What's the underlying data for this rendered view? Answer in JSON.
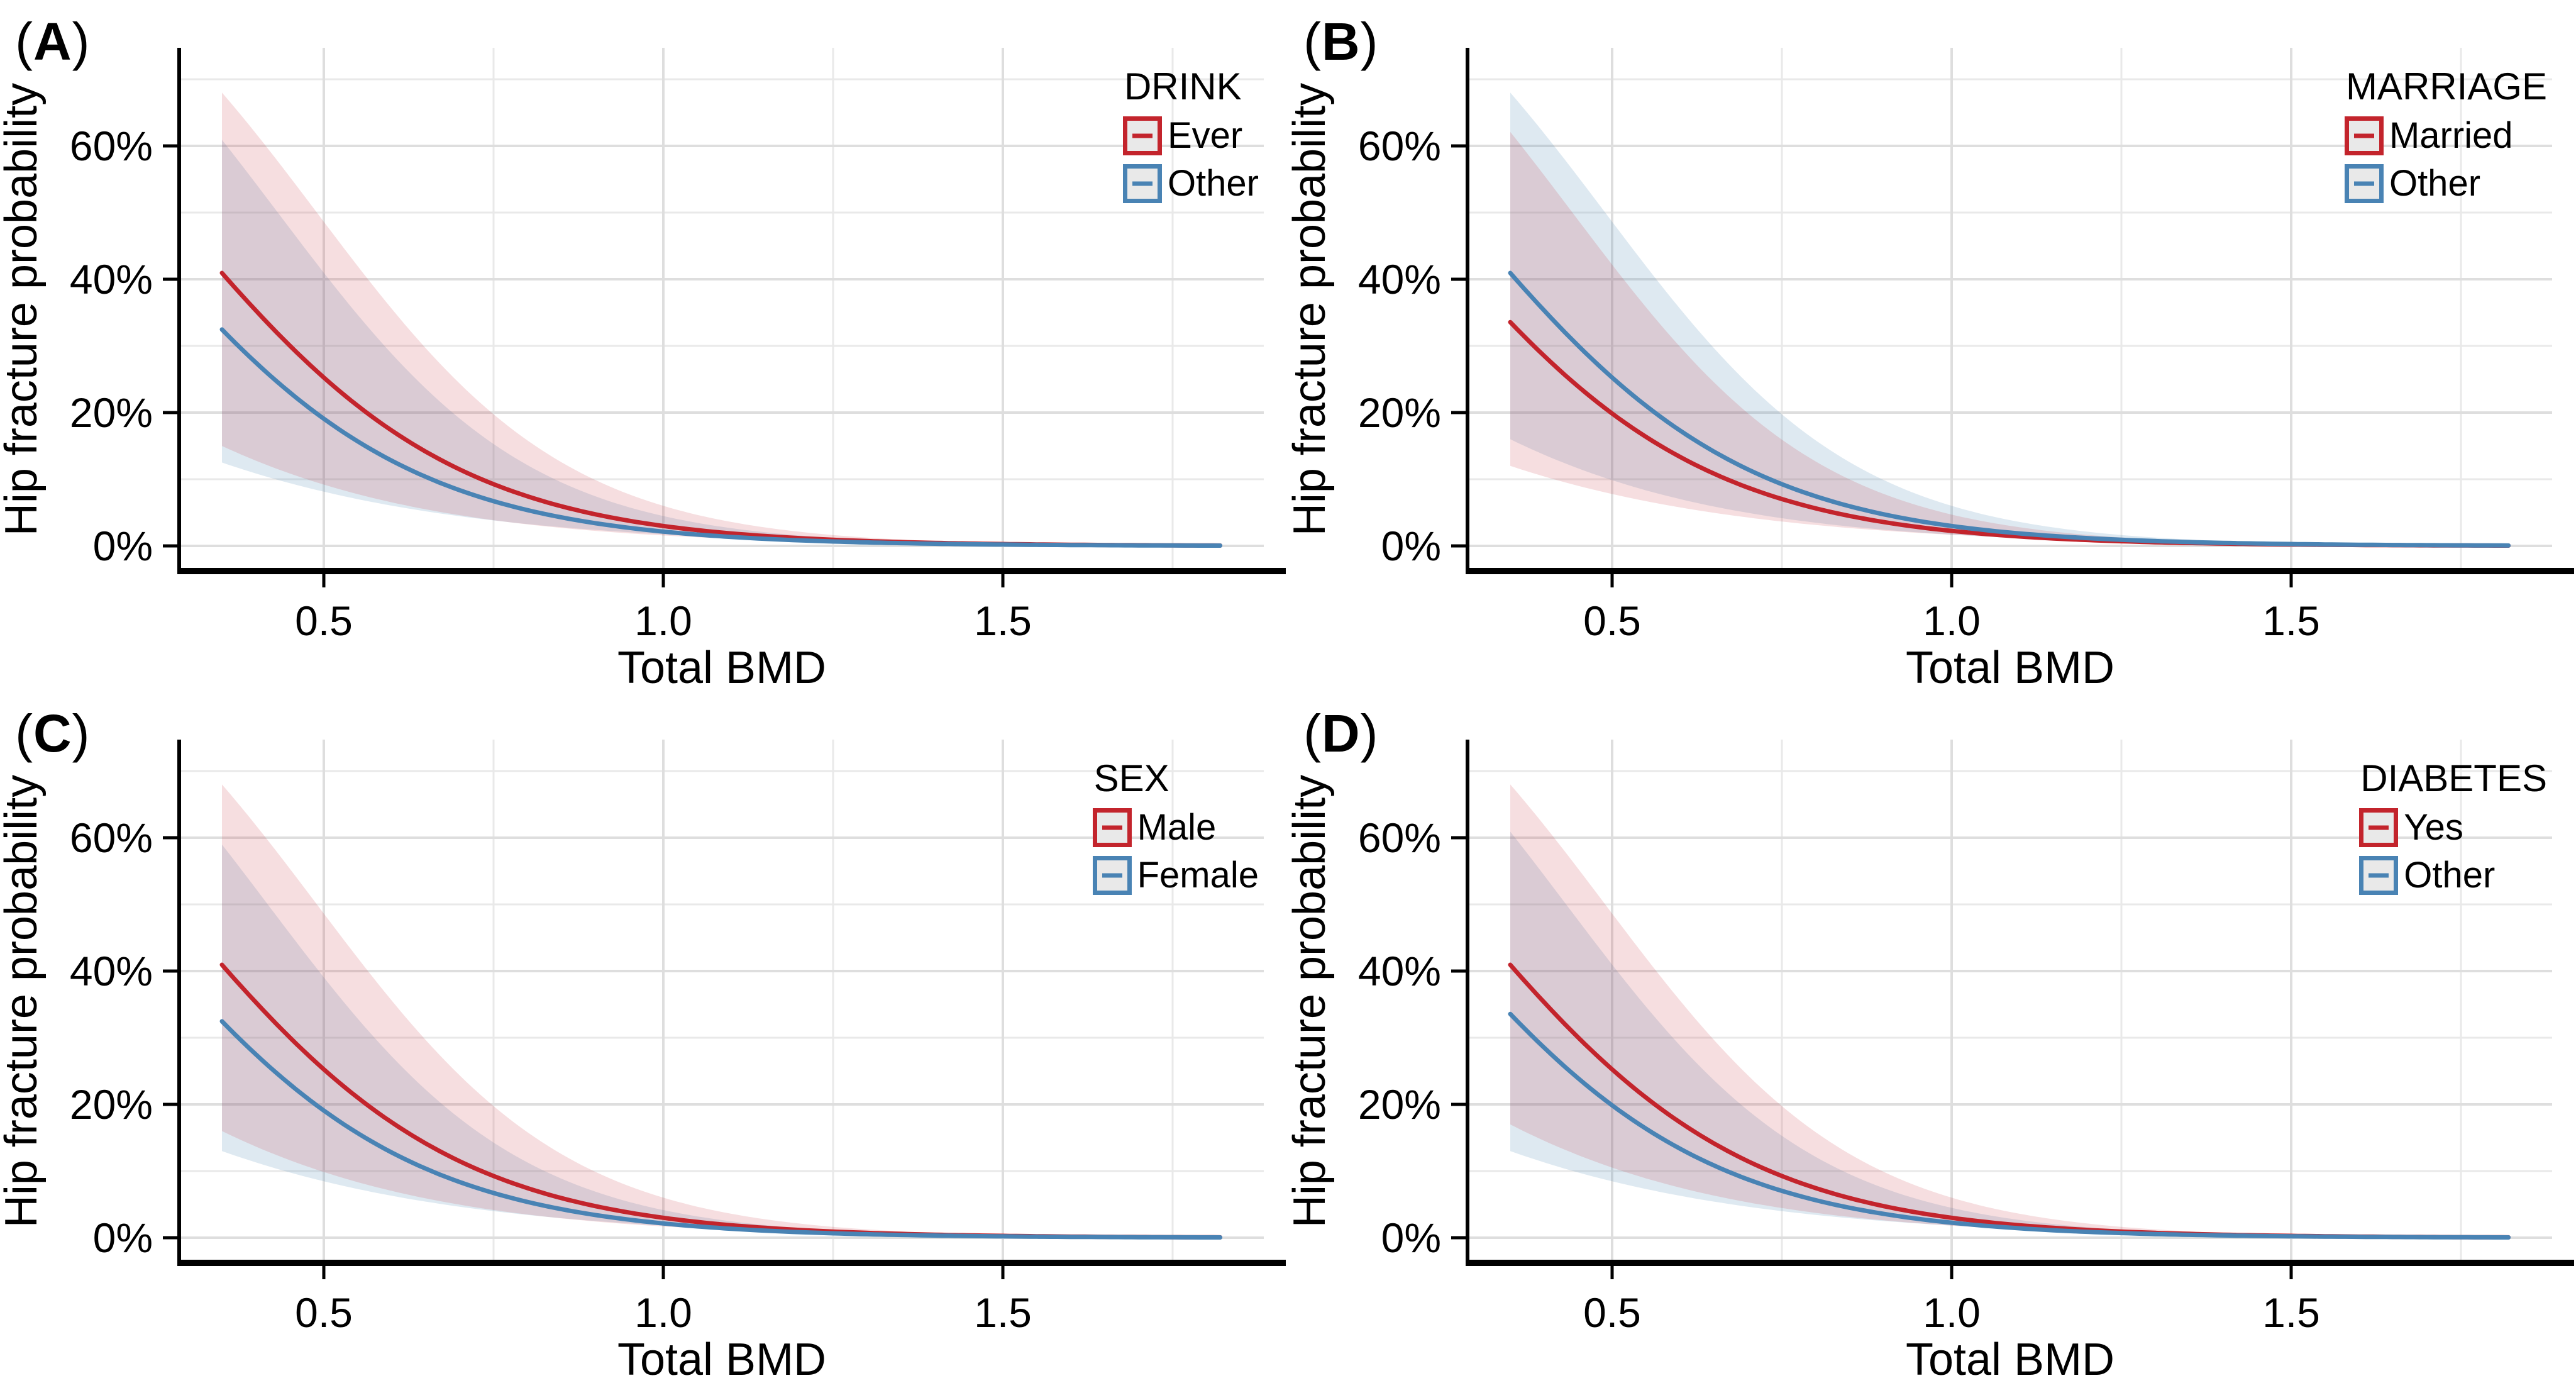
{
  "figure": {
    "background": "#FFFFFF",
    "paren_open": "(",
    "paren_close": ")",
    "layout": "2x2-grid-of-panels"
  },
  "colors": {
    "red_line": "#C3242C",
    "blue_line": "#4983B4",
    "red_ribbon_fill": "#F7DFE2",
    "blue_ribbon_fill": "#DCE8F2",
    "ribbon_overlap": "#DFD3DC",
    "grid_major": "#DEDEDE",
    "grid_minor": "#E9E9E9",
    "axis": "#000000",
    "text": "#000000",
    "legend_key_fill": "#E9E9E9"
  },
  "axes": {
    "x_label": "Total BMD",
    "y_label": "Hip fracture probability",
    "x_ticks": [
      "0.5",
      "1.0",
      "1.5"
    ],
    "x_tick_values": [
      0.5,
      1.0,
      1.5
    ],
    "x_minor_values": [
      0.75,
      1.25,
      1.75
    ],
    "y_ticks": [
      "0%",
      "20%",
      "40%",
      "60%"
    ],
    "y_tick_values": [
      0,
      20,
      40,
      60
    ],
    "y_minor_pct": [
      10,
      30,
      50,
      70
    ],
    "x_range_displayed": [
      0.287,
      1.884
    ],
    "y_range_displayed_pct": [
      -3.8,
      74.7
    ],
    "grid": true,
    "axis_style": "left-and-bottom-black-spines"
  },
  "chart_data": [
    {
      "type": "line",
      "ci": "ribbon",
      "panel_label": "A",
      "legend_title": "DRINK",
      "legend_position": "top-right-inside",
      "x_label": "Total BMD",
      "y_label": "Hip fracture probability",
      "x_domain": [
        0.35,
        1.82
      ],
      "series": [
        {
          "name": "Ever",
          "color_key": "red",
          "line_logit": {
            "a": 1.31,
            "b": -4.79
          },
          "upper_logit": {
            "a": 2.64,
            "b": -5.39
          },
          "lower_logit": {
            "a": -0.44,
            "b": -3.7
          },
          "readings_pct": {
            "x": [
              0.35,
              0.5,
              0.75,
              1.0,
              1.25,
              1.5,
              1.82
            ],
            "line": [
              41,
              25,
              9.2,
              3.0,
              0.9,
              0.3,
              0.1
            ],
            "upper": [
              68,
              49,
              20,
              6.0,
              1.6,
              0.4,
              0.1
            ],
            "lower": [
              15,
              9.2,
              3.9,
              1.6,
              0.6,
              0.25,
              0.1
            ]
          }
        },
        {
          "name": "Other",
          "color_key": "blue",
          "line_logit": {
            "a": 0.93,
            "b": -4.75
          },
          "upper_logit": {
            "a": 2.33,
            "b": -5.39
          },
          "lower_logit": {
            "a": -0.825,
            "b": -3.2
          },
          "readings_pct": {
            "x": [
              0.35,
              0.5,
              0.75,
              1.0,
              1.25,
              1.5,
              1.82
            ],
            "line": [
              32,
              19,
              6.7,
              2.1,
              0.7,
              0.2,
              0.1
            ],
            "upper": [
              61,
              41,
              15,
              4.5,
              1.2,
              0.3,
              0.1
            ],
            "lower": [
              12.5,
              8.1,
              3.8,
              1.8,
              0.8,
              0.4,
              0.13
            ]
          }
        }
      ]
    },
    {
      "type": "line",
      "ci": "ribbon",
      "panel_label": "B",
      "legend_title": "MARRIAGE",
      "legend_position": "top-right-inside",
      "x_label": "Total BMD",
      "y_label": "Hip fracture probability",
      "x_domain": [
        0.35,
        1.82
      ],
      "series": [
        {
          "name": "Married",
          "color_key": "red",
          "line_logit": {
            "a": 0.98,
            "b": -4.75
          },
          "upper_logit": {
            "a": 2.38,
            "b": -5.39
          },
          "lower_logit": {
            "a": -0.872,
            "b": -3.2
          },
          "readings_pct": {
            "x": [
              0.35,
              0.5,
              0.75,
              1.0,
              1.25,
              1.5,
              1.82
            ],
            "line": [
              33.5,
              20,
              7.0,
              2.2,
              0.7,
              0.2,
              0.1
            ],
            "upper": [
              62,
              42,
              16,
              4.7,
              1.3,
              0.3,
              0.1
            ],
            "lower": [
              12,
              7.8,
              3.7,
              1.7,
              0.75,
              0.33,
              0.12
            ]
          }
        },
        {
          "name": "Other",
          "color_key": "blue",
          "line_logit": {
            "a": 1.31,
            "b": -4.79
          },
          "upper_logit": {
            "a": 2.64,
            "b": -5.39
          },
          "lower_logit": {
            "a": -0.363,
            "b": -3.7
          },
          "readings_pct": {
            "x": [
              0.35,
              0.5,
              0.75,
              1.0,
              1.25,
              1.5,
              1.82
            ],
            "line": [
              41,
              25,
              9.2,
              3.0,
              0.9,
              0.3,
              0.1
            ],
            "upper": [
              68,
              49,
              20,
              6.0,
              1.6,
              0.4,
              0.1
            ],
            "lower": [
              16,
              9.9,
              4.2,
              1.7,
              0.7,
              0.3,
              0.1
            ]
          }
        }
      ]
    },
    {
      "type": "line",
      "ci": "ribbon",
      "panel_label": "C",
      "legend_title": "SEX",
      "legend_position": "top-right-inside",
      "x_label": "Total BMD",
      "y_label": "Hip fracture probability",
      "x_domain": [
        0.35,
        1.82
      ],
      "series": [
        {
          "name": "Male",
          "color_key": "red",
          "line_logit": {
            "a": 1.31,
            "b": -4.79
          },
          "upper_logit": {
            "a": 2.64,
            "b": -5.39
          },
          "lower_logit": {
            "a": -0.363,
            "b": -3.7
          },
          "readings_pct": {
            "x": [
              0.35,
              0.5,
              0.75,
              1.0,
              1.25,
              1.5,
              1.82
            ],
            "line": [
              41,
              25,
              9.2,
              3.0,
              0.9,
              0.3,
              0.1
            ],
            "upper": [
              68,
              49,
              20,
              6.0,
              1.6,
              0.4,
              0.1
            ],
            "lower": [
              16,
              9.9,
              4.2,
              1.7,
              0.7,
              0.3,
              0.1
            ]
          }
        },
        {
          "name": "Female",
          "color_key": "blue",
          "line_logit": {
            "a": 0.93,
            "b": -4.75
          },
          "upper_logit": {
            "a": 2.25,
            "b": -5.39
          },
          "lower_logit": {
            "a": -0.781,
            "b": -3.2
          },
          "readings_pct": {
            "x": [
              0.35,
              0.5,
              0.75,
              1.0,
              1.25,
              1.5,
              1.82
            ],
            "line": [
              32.5,
              19,
              6.7,
              2.1,
              0.7,
              0.2,
              0.1
            ],
            "upper": [
              59,
              39,
              14,
              4.2,
              1.1,
              0.3,
              0.1
            ],
            "lower": [
              13,
              8.5,
              4.0,
              1.8,
              0.8,
              0.4,
              0.13
            ]
          }
        }
      ]
    },
    {
      "type": "line",
      "ci": "ribbon",
      "panel_label": "D",
      "legend_title": "DIABETES",
      "legend_position": "top-right-inside",
      "x_label": "Total BMD",
      "y_label": "Hip fracture probability",
      "x_domain": [
        0.35,
        1.82
      ],
      "series": [
        {
          "name": "Yes",
          "color_key": "red",
          "line_logit": {
            "a": 1.31,
            "b": -4.79
          },
          "upper_logit": {
            "a": 2.64,
            "b": -5.39
          },
          "lower_logit": {
            "a": -0.291,
            "b": -3.7
          },
          "readings_pct": {
            "x": [
              0.35,
              0.5,
              0.75,
              1.0,
              1.25,
              1.5,
              1.82
            ],
            "line": [
              41,
              25,
              9.2,
              3.0,
              0.9,
              0.3,
              0.1
            ],
            "upper": [
              68,
              49,
              20,
              6.0,
              1.6,
              0.4,
              0.1
            ],
            "lower": [
              17,
              10.5,
              4.5,
              1.8,
              0.8,
              0.3,
              0.1
            ]
          }
        },
        {
          "name": "Other",
          "color_key": "blue",
          "line_logit": {
            "a": 0.98,
            "b": -4.75
          },
          "upper_logit": {
            "a": 2.33,
            "b": -5.39
          },
          "lower_logit": {
            "a": -0.781,
            "b": -3.2
          },
          "readings_pct": {
            "x": [
              0.35,
              0.5,
              0.75,
              1.0,
              1.25,
              1.5,
              1.82
            ],
            "line": [
              33.5,
              20,
              7.0,
              2.2,
              0.7,
              0.2,
              0.1
            ],
            "upper": [
              61,
              41,
              15,
              4.5,
              1.2,
              0.3,
              0.1
            ],
            "lower": [
              13,
              8.5,
              4.0,
              1.8,
              0.8,
              0.4,
              0.13
            ]
          }
        }
      ]
    }
  ]
}
